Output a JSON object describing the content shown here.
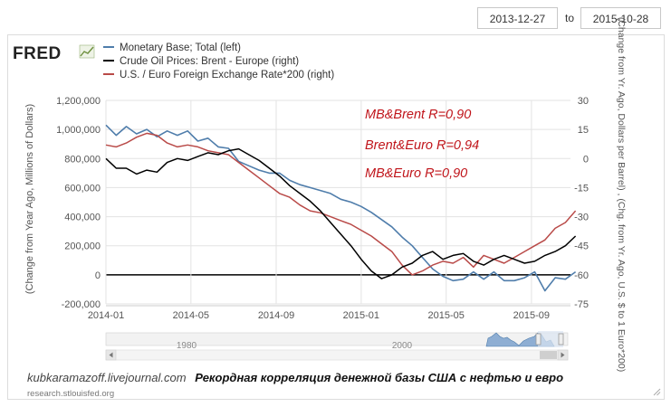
{
  "date_range": {
    "start": "2013-12-27",
    "to_label": "to",
    "end": "2015-10-28"
  },
  "logo": {
    "text": "FRED",
    "icon": "chart-line-icon"
  },
  "annotations": [
    "MB&Brent R=0,90",
    "Brent&Euro R=0,94",
    "MB&Euro R=0,90"
  ],
  "caption": {
    "blog": "kubkaramazoff.livejournal.com",
    "title": "Рекордная корреляция денежной базы США с нефтью и евро"
  },
  "source": "research.stlouisfed.org",
  "navigator": {
    "labels": [
      "1980",
      "2000"
    ]
  },
  "colors": {
    "mb": "#4f7dab",
    "brent": "#000000",
    "euro": "#b94a48"
  },
  "chart_data": {
    "type": "line",
    "x_ticks": [
      "2014-01",
      "2014-05",
      "2014-09",
      "2015-01",
      "2015-05",
      "2015-09"
    ],
    "x_range": [
      "2014-01",
      "2015-10-28"
    ],
    "y_left": {
      "label": "(Change from Year Ago, Millions of Dollars)",
      "ticks": [
        "1,200,000",
        "1,000,000",
        "800,000",
        "600,000",
        "400,000",
        "200,000",
        "0",
        "-200,000"
      ],
      "range": [
        -200000,
        1200000
      ]
    },
    "y_right": {
      "label": "(Change from Yr. Ago, Dollars per Barrel) , (Chg. from Yr. Ago, U.S. $ to 1 Euro*200)",
      "ticks": [
        "30",
        "15",
        "0",
        "-15",
        "-30",
        "-45",
        "-60",
        "-75"
      ],
      "range": [
        -75,
        30
      ]
    },
    "grid": true,
    "legend_position": "top-left",
    "series": [
      {
        "name": "Monetary Base; Total (left)",
        "axis": "left",
        "color": "#4f7dab",
        "x": [
          2014.0,
          2014.04,
          2014.08,
          2014.12,
          2014.16,
          2014.2,
          2014.24,
          2014.28,
          2014.32,
          2014.36,
          2014.4,
          2014.44,
          2014.48,
          2014.52,
          2014.56,
          2014.6,
          2014.64,
          2014.68,
          2014.72,
          2014.76,
          2014.8,
          2014.84,
          2014.88,
          2014.92,
          2014.96,
          2015.0,
          2015.04,
          2015.08,
          2015.12,
          2015.16,
          2015.2,
          2015.24,
          2015.28,
          2015.32,
          2015.36,
          2015.4,
          2015.44,
          2015.48,
          2015.52,
          2015.56,
          2015.6,
          2015.64,
          2015.68,
          2015.72,
          2015.76,
          2015.8,
          2015.84
        ],
        "values": [
          1030000,
          960000,
          1020000,
          970000,
          1000000,
          950000,
          990000,
          960000,
          990000,
          920000,
          940000,
          880000,
          870000,
          780000,
          750000,
          720000,
          700000,
          700000,
          650000,
          620000,
          600000,
          580000,
          560000,
          520000,
          500000,
          470000,
          430000,
          380000,
          330000,
          260000,
          200000,
          120000,
          40000,
          -10000,
          -40000,
          -30000,
          20000,
          -30000,
          20000,
          -40000,
          -40000,
          -20000,
          20000,
          -110000,
          -20000,
          -30000,
          20000
        ]
      },
      {
        "name": "Crude Oil Prices: Brent - Europe (right)",
        "axis": "right",
        "color": "#000000",
        "x": [
          2014.0,
          2014.04,
          2014.08,
          2014.12,
          2014.16,
          2014.2,
          2014.24,
          2014.28,
          2014.32,
          2014.36,
          2014.4,
          2014.44,
          2014.48,
          2014.52,
          2014.56,
          2014.6,
          2014.64,
          2014.68,
          2014.72,
          2014.76,
          2014.8,
          2014.84,
          2014.88,
          2014.92,
          2014.96,
          2015.0,
          2015.04,
          2015.08,
          2015.12,
          2015.16,
          2015.2,
          2015.24,
          2015.28,
          2015.32,
          2015.36,
          2015.4,
          2015.44,
          2015.48,
          2015.52,
          2015.56,
          2015.6,
          2015.64,
          2015.68,
          2015.72,
          2015.76,
          2015.8,
          2015.84
        ],
        "values": [
          0,
          -5,
          -5,
          -8,
          -6,
          -7,
          -2,
          0,
          -1,
          1,
          3,
          2,
          4,
          5,
          2,
          -1,
          -5,
          -9,
          -14,
          -18,
          -22,
          -27,
          -33,
          -39,
          -45,
          -52,
          -58,
          -62,
          -60,
          -56,
          -54,
          -50,
          -48,
          -52,
          -50,
          -49,
          -53,
          -55,
          -52,
          -50,
          -52,
          -54,
          -53,
          -50,
          -48,
          -45,
          -40
        ]
      },
      {
        "name": "U.S. / Euro Foreign Exchange Rate*200 (right)",
        "axis": "right",
        "color": "#b94a48",
        "x": [
          2014.0,
          2014.04,
          2014.08,
          2014.12,
          2014.16,
          2014.2,
          2014.24,
          2014.28,
          2014.32,
          2014.36,
          2014.4,
          2014.44,
          2014.48,
          2014.52,
          2014.56,
          2014.6,
          2014.64,
          2014.68,
          2014.72,
          2014.76,
          2014.8,
          2014.84,
          2014.88,
          2014.92,
          2014.96,
          2015.0,
          2015.04,
          2015.08,
          2015.12,
          2015.16,
          2015.2,
          2015.24,
          2015.28,
          2015.32,
          2015.36,
          2015.4,
          2015.44,
          2015.48,
          2015.52,
          2015.56,
          2015.6,
          2015.64,
          2015.68,
          2015.72,
          2015.76,
          2015.8,
          2015.84
        ],
        "values": [
          7,
          6,
          8,
          11,
          13,
          12,
          8,
          6,
          7,
          6,
          4,
          3,
          2,
          -2,
          -6,
          -10,
          -14,
          -18,
          -20,
          -24,
          -27,
          -28,
          -30,
          -32,
          -34,
          -37,
          -40,
          -44,
          -48,
          -55,
          -60,
          -58,
          -55,
          -53,
          -54,
          -51,
          -56,
          -50,
          -52,
          -54,
          -51,
          -48,
          -45,
          -42,
          -36,
          -33,
          -27
        ]
      }
    ]
  }
}
